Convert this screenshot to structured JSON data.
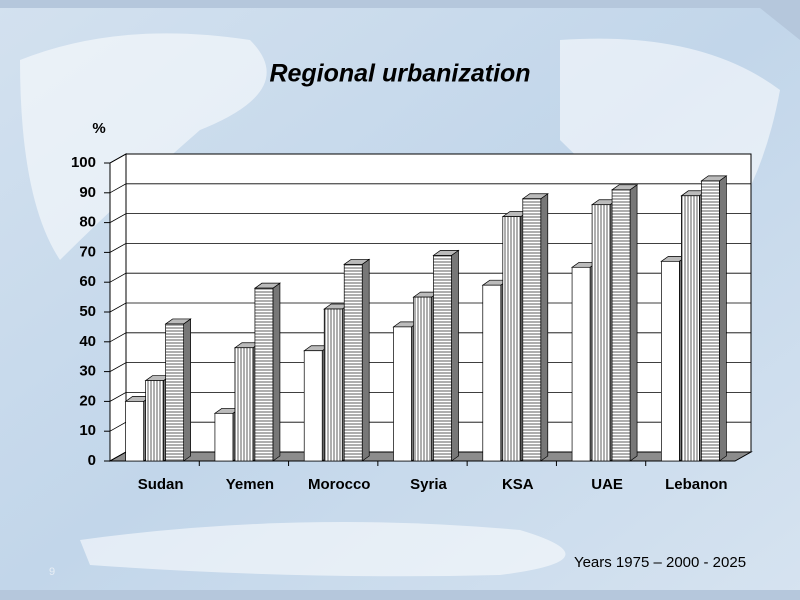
{
  "chart_data": {
    "type": "bar3d",
    "title": "Regional urbanization",
    "y_label": "%",
    "note": "Years 1975 – 2000 - 2025",
    "slide_number": "9",
    "categories": [
      "Sudan",
      "Yemen",
      "Morocco",
      "Syria",
      "KSA",
      "UAE",
      "Lebanon"
    ],
    "series": [
      {
        "color": "#ffffff",
        "pattern": "none",
        "values": [
          20,
          16,
          37,
          45,
          59,
          65,
          67
        ]
      },
      {
        "color": "#ffffff",
        "pattern": "vertical",
        "values": [
          27,
          38,
          51,
          55,
          82,
          86,
          89
        ]
      },
      {
        "color": "#ffffff",
        "pattern": "horizontal",
        "values": [
          46,
          58,
          66,
          69,
          88,
          91,
          94
        ]
      }
    ],
    "ylim": [
      0,
      100
    ],
    "yticks": [
      0,
      10,
      20,
      30,
      40,
      50,
      60,
      70,
      80,
      90,
      100
    ],
    "grid": true
  }
}
